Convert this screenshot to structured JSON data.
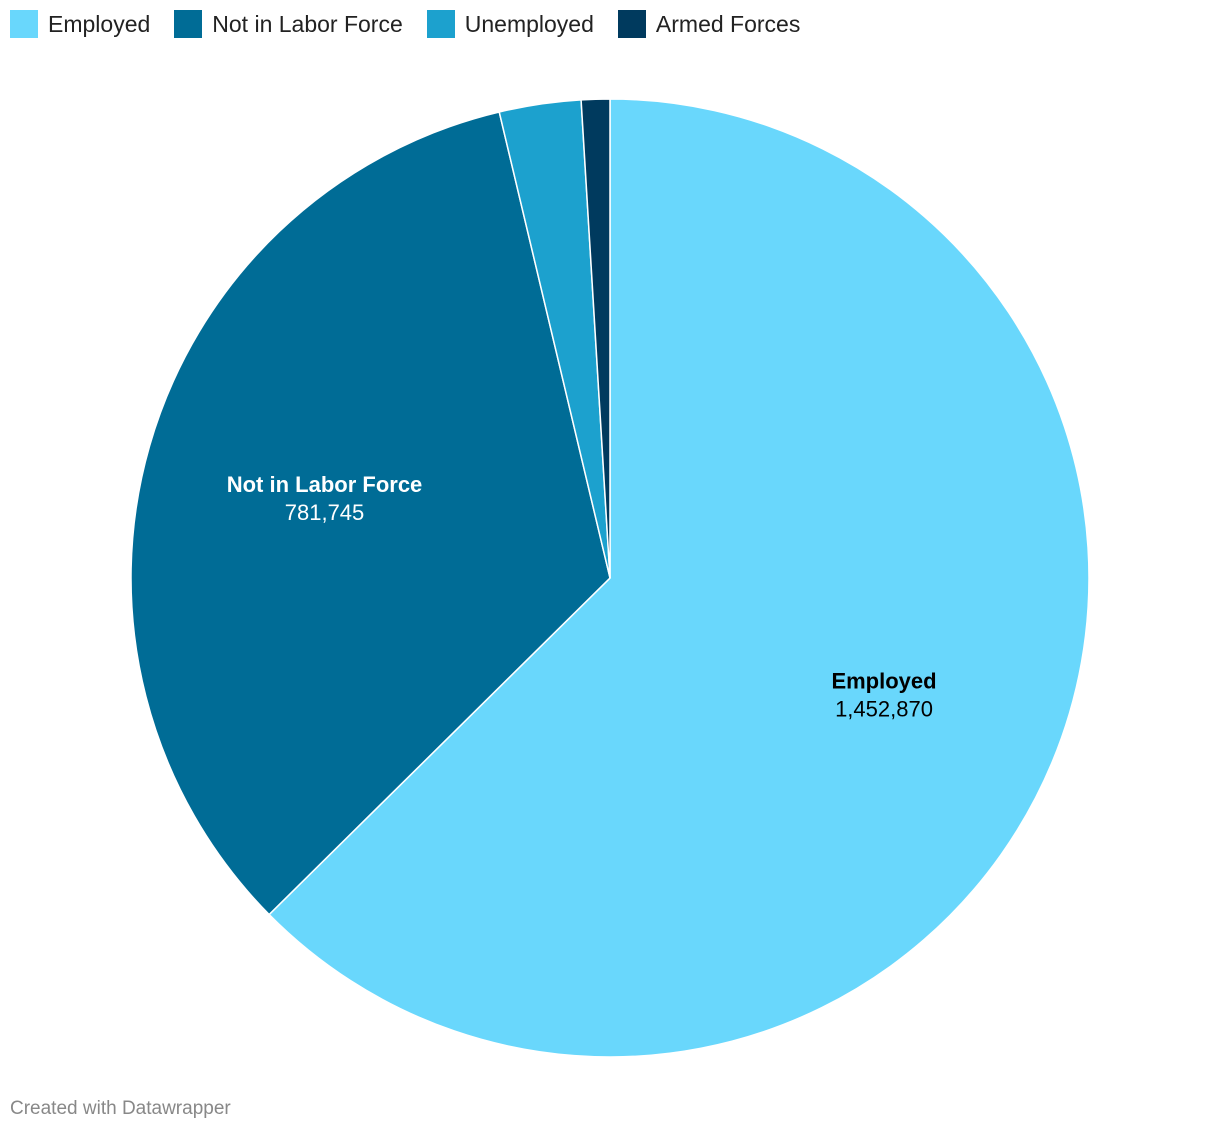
{
  "chart_data": {
    "type": "pie",
    "categories": [
      "Employed",
      "Not in Labor Force",
      "Unemployed",
      "Armed Forces"
    ],
    "values": [
      1452870,
      781745,
      63900,
      22300
    ],
    "colors": [
      "#69d7fc",
      "#006c96",
      "#1ca1ce",
      "#003a5e"
    ],
    "legend_position": "top-left",
    "data_labels": [
      {
        "name": "Employed",
        "value_text": "1,452,870",
        "text_color": "#000000"
      },
      {
        "name": "Not in Labor Force",
        "value_text": "781,745",
        "text_color": "#ffffff"
      }
    ]
  },
  "legend": [
    {
      "label": "Employed",
      "color": "#69d7fc"
    },
    {
      "label": "Not in Labor Force",
      "color": "#006c96"
    },
    {
      "label": "Unemployed",
      "color": "#1ca1ce"
    },
    {
      "label": "Armed Forces",
      "color": "#003a5e"
    }
  ],
  "footer": {
    "credit": "Created with Datawrapper"
  }
}
